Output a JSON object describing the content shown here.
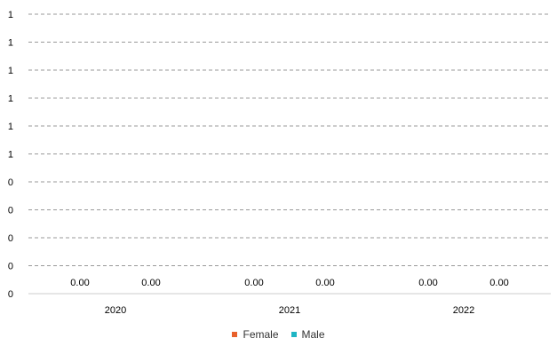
{
  "chart_data": {
    "type": "bar",
    "categories": [
      "2020",
      "2021",
      "2022"
    ],
    "series": [
      {
        "name": "Female",
        "color": "#e8612c",
        "values": [
          0,
          0,
          0
        ]
      },
      {
        "name": "Male",
        "color": "#1fb5c4",
        "values": [
          0,
          0,
          0
        ]
      }
    ],
    "data_labels": [
      [
        "0.00",
        "0.00"
      ],
      [
        "0.00",
        "0.00"
      ],
      [
        "0.00",
        "0.00"
      ]
    ],
    "y_tick_labels": [
      "0",
      "0",
      "0",
      "0",
      "0",
      "1",
      "1",
      "1",
      "1",
      "1",
      "1"
    ],
    "ylim": [
      0,
      1
    ],
    "grid": true,
    "grid_style": "dashed",
    "legend_position": "bottom"
  }
}
